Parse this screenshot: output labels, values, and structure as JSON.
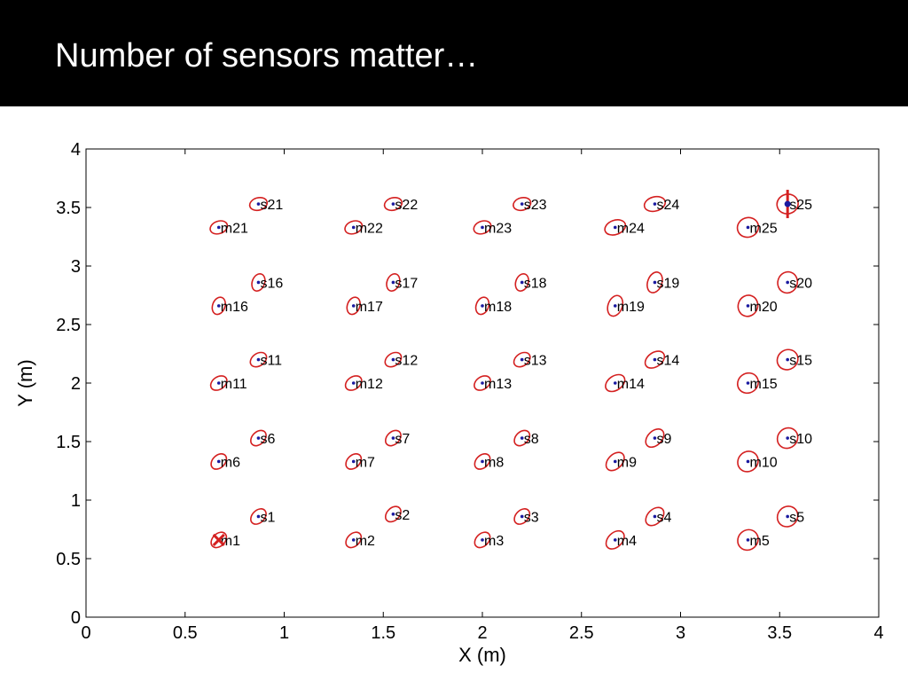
{
  "slide": {
    "title": "Number of sensors matter…"
  },
  "colors": {
    "background": "#ffffff",
    "title_bar": "#000000",
    "title_text": "#ffffff",
    "ellipse": "#d42020",
    "estimate_point": "#1a1aa0",
    "marker": "#d42020",
    "axis": "#000000"
  },
  "chart_data": {
    "type": "scatter",
    "xlabel": "X (m)",
    "ylabel": "Y (m)",
    "xlim": [
      0,
      4
    ],
    "ylim": [
      0,
      4
    ],
    "xticks": [
      "0",
      "0.5",
      "1",
      "1.5",
      "2",
      "2.5",
      "3",
      "3.5",
      "4"
    ],
    "yticks": [
      "0",
      "0.5",
      "1",
      "1.5",
      "2",
      "2.5",
      "3",
      "3.5",
      "4"
    ],
    "grid": false,
    "sensors": [
      {
        "label": "s1",
        "x": 0.87,
        "y": 0.86
      },
      {
        "label": "s2",
        "x": 1.55,
        "y": 0.88
      },
      {
        "label": "s3",
        "x": 2.2,
        "y": 0.86
      },
      {
        "label": "s4",
        "x": 2.87,
        "y": 0.86
      },
      {
        "label": "s5",
        "x": 3.54,
        "y": 0.86
      },
      {
        "label": "s6",
        "x": 0.87,
        "y": 1.53
      },
      {
        "label": "s7",
        "x": 1.55,
        "y": 1.53
      },
      {
        "label": "s8",
        "x": 2.2,
        "y": 1.53
      },
      {
        "label": "s9",
        "x": 2.87,
        "y": 1.53
      },
      {
        "label": "s10",
        "x": 3.54,
        "y": 1.53
      },
      {
        "label": "s11",
        "x": 0.87,
        "y": 2.2
      },
      {
        "label": "s12",
        "x": 1.55,
        "y": 2.2
      },
      {
        "label": "s13",
        "x": 2.2,
        "y": 2.2
      },
      {
        "label": "s14",
        "x": 2.87,
        "y": 2.2
      },
      {
        "label": "s15",
        "x": 3.54,
        "y": 2.2
      },
      {
        "label": "s16",
        "x": 0.87,
        "y": 2.86
      },
      {
        "label": "s17",
        "x": 1.55,
        "y": 2.86
      },
      {
        "label": "s18",
        "x": 2.2,
        "y": 2.86
      },
      {
        "label": "s19",
        "x": 2.87,
        "y": 2.86
      },
      {
        "label": "s20",
        "x": 3.54,
        "y": 2.86
      },
      {
        "label": "s21",
        "x": 0.87,
        "y": 3.53
      },
      {
        "label": "s22",
        "x": 1.55,
        "y": 3.53
      },
      {
        "label": "s23",
        "x": 2.2,
        "y": 3.53
      },
      {
        "label": "s24",
        "x": 2.87,
        "y": 3.53
      },
      {
        "label": "s25",
        "x": 3.54,
        "y": 3.53
      }
    ],
    "marks": [
      {
        "label": "m1",
        "x": 0.67,
        "y": 0.66
      },
      {
        "label": "m2",
        "x": 1.35,
        "y": 0.66
      },
      {
        "label": "m3",
        "x": 2.0,
        "y": 0.66
      },
      {
        "label": "m4",
        "x": 2.67,
        "y": 0.66
      },
      {
        "label": "m5",
        "x": 3.34,
        "y": 0.66
      },
      {
        "label": "m6",
        "x": 0.67,
        "y": 1.33
      },
      {
        "label": "m7",
        "x": 1.35,
        "y": 1.33
      },
      {
        "label": "m8",
        "x": 2.0,
        "y": 1.33
      },
      {
        "label": "m9",
        "x": 2.67,
        "y": 1.33
      },
      {
        "label": "m10",
        "x": 3.34,
        "y": 1.33
      },
      {
        "label": "m11",
        "x": 0.67,
        "y": 2.0
      },
      {
        "label": "m12",
        "x": 1.35,
        "y": 2.0
      },
      {
        "label": "m13",
        "x": 2.0,
        "y": 2.0
      },
      {
        "label": "m14",
        "x": 2.67,
        "y": 2.0
      },
      {
        "label": "m15",
        "x": 3.34,
        "y": 2.0
      },
      {
        "label": "m16",
        "x": 0.67,
        "y": 2.66
      },
      {
        "label": "m17",
        "x": 1.35,
        "y": 2.66
      },
      {
        "label": "m18",
        "x": 2.0,
        "y": 2.66
      },
      {
        "label": "m19",
        "x": 2.67,
        "y": 2.66
      },
      {
        "label": "m20",
        "x": 3.34,
        "y": 2.66
      },
      {
        "label": "m21",
        "x": 0.67,
        "y": 3.33
      },
      {
        "label": "m22",
        "x": 1.35,
        "y": 3.33
      },
      {
        "label": "m23",
        "x": 2.0,
        "y": 3.33
      },
      {
        "label": "m24",
        "x": 2.67,
        "y": 3.33
      },
      {
        "label": "m25",
        "x": 3.34,
        "y": 3.33
      }
    ],
    "cross_marker": {
      "x": 0.67,
      "y": 0.66
    },
    "bar_marker": {
      "x": 3.54,
      "y": 3.53
    }
  }
}
